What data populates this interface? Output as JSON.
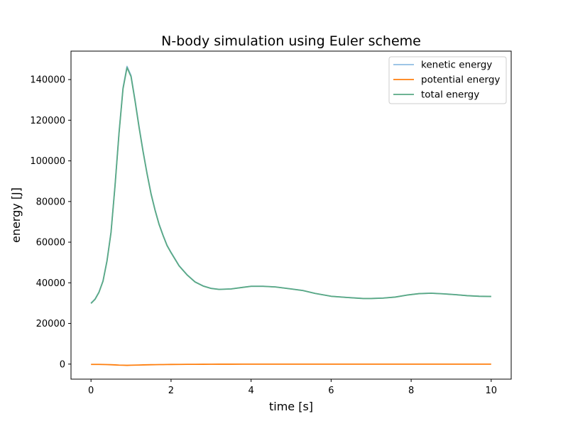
{
  "chart_data": {
    "type": "line",
    "title": "N-body simulation using Euler scheme",
    "xlabel": "time [s]",
    "ylabel": "energy [J]",
    "xlim": [
      -0.5,
      10.5
    ],
    "ylim": [
      -7400,
      154000
    ],
    "xticks": [
      0,
      2,
      4,
      6,
      8,
      10
    ],
    "xtick_labels": [
      "0",
      "2",
      "4",
      "6",
      "8",
      "10"
    ],
    "yticks": [
      0,
      20000,
      40000,
      60000,
      80000,
      100000,
      120000,
      140000
    ],
    "ytick_labels": [
      "0",
      "20000",
      "40000",
      "60000",
      "80000",
      "100000",
      "120000",
      "140000"
    ],
    "grid": false,
    "legend_position": "top-right",
    "x": [
      0,
      0.1,
      0.2,
      0.3,
      0.4,
      0.5,
      0.6,
      0.7,
      0.8,
      0.9,
      1.0,
      1.1,
      1.2,
      1.3,
      1.4,
      1.5,
      1.6,
      1.7,
      1.8,
      1.9,
      2.0,
      2.2,
      2.4,
      2.6,
      2.8,
      3.0,
      3.2,
      3.5,
      3.8,
      4.0,
      4.3,
      4.6,
      5.0,
      5.3,
      5.6,
      6.0,
      6.4,
      6.8,
      7.0,
      7.3,
      7.6,
      7.9,
      8.2,
      8.5,
      8.8,
      9.1,
      9.4,
      9.7,
      10.0
    ],
    "series": [
      {
        "name": "kenetic energy",
        "color": "#8fbde2",
        "values": [
          30000,
          32000,
          35500,
          41000,
          51000,
          65000,
          88000,
          114000,
          136000,
          146500,
          142000,
          130000,
          117000,
          105000,
          94000,
          84000,
          76000,
          69000,
          63500,
          58500,
          55000,
          48500,
          44000,
          40500,
          38500,
          37300,
          36800,
          37000,
          37800,
          38300,
          38300,
          38000,
          37000,
          36200,
          34800,
          33400,
          32800,
          32300,
          32300,
          32500,
          33000,
          34000,
          34700,
          34900,
          34600,
          34200,
          33700,
          33400,
          33300
        ]
      },
      {
        "name": "potential energy",
        "color": "#ff7f0e",
        "values": [
          -150,
          -150,
          -150,
          -200,
          -250,
          -300,
          -400,
          -500,
          -550,
          -600,
          -550,
          -500,
          -450,
          -400,
          -350,
          -300,
          -280,
          -250,
          -230,
          -200,
          -180,
          -150,
          -120,
          -100,
          -80,
          -60,
          -50,
          -40,
          -30,
          -30,
          -30,
          -30,
          -30,
          -30,
          -30,
          -30,
          -30,
          -30,
          -30,
          -30,
          -30,
          -30,
          -30,
          -30,
          -30,
          -30,
          -30,
          -30,
          -30
        ]
      },
      {
        "name": "total energy",
        "color": "#5aa984",
        "values": [
          29850,
          31850,
          35350,
          40800,
          50750,
          64700,
          87600,
          113500,
          135450,
          145900,
          141450,
          129500,
          116550,
          104600,
          93650,
          83700,
          75720,
          68750,
          63270,
          58300,
          54820,
          48350,
          43880,
          40400,
          38420,
          37240,
          36750,
          36960,
          37770,
          38270,
          38270,
          37970,
          36970,
          36170,
          34770,
          33370,
          32770,
          32270,
          32270,
          32470,
          32970,
          33970,
          34670,
          34870,
          34570,
          34170,
          33670,
          33370,
          33270
        ]
      }
    ]
  }
}
